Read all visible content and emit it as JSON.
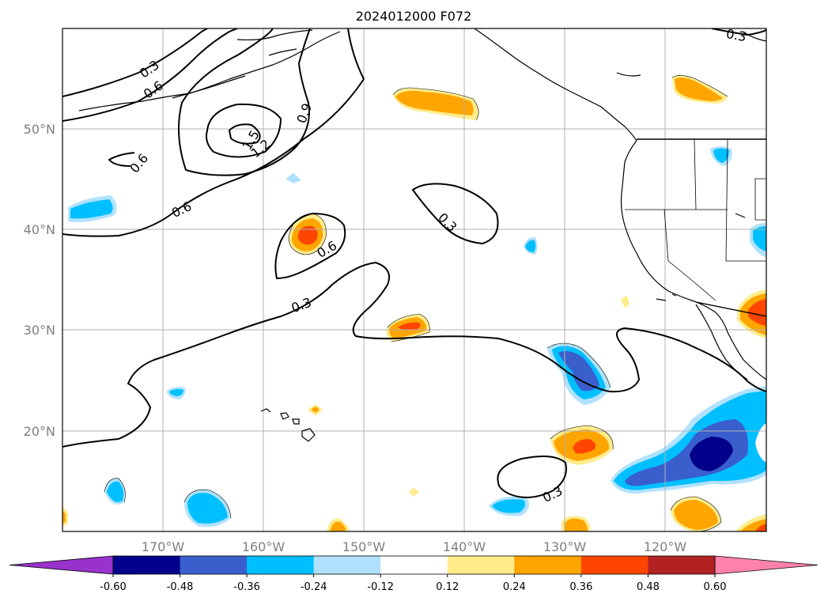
{
  "title": "2024012000 F072",
  "lat_labels": [
    "50°N",
    "40°N",
    "30°N",
    "20°N"
  ],
  "lon_labels": [
    "170°W",
    "160°W",
    "150°W",
    "140°W",
    "130°W",
    "120°W"
  ],
  "contour_labels": [
    "0.3",
    "0.6",
    "1.5",
    "1.2",
    "0.9",
    "0.6",
    "0.6",
    "0.3",
    "0.6",
    "0.3",
    "0.3",
    "0.3"
  ],
  "colorbar": {
    "ticks": [
      "-0.60",
      "-0.48",
      "-0.36",
      "-0.24",
      "-0.12",
      "0.12",
      "0.24",
      "0.36",
      "0.48",
      "0.60"
    ],
    "colors": [
      "#9932cc",
      "#00008b",
      "#3a5fcd",
      "#00bfff",
      "#b0e2ff",
      "#ffffff",
      "#ffec8b",
      "#ffa500",
      "#ff4500",
      "#b22222",
      "#ff82ab"
    ]
  }
}
